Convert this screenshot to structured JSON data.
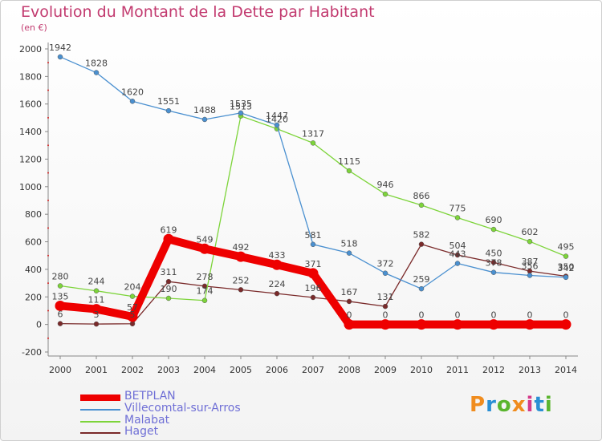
{
  "title": "Evolution du Montant de la Dette par Habitant",
  "subtitle": "(en €)",
  "logo": {
    "text": "Proxiti",
    "colors": [
      "#f08c1e",
      "#2a8fd4",
      "#5ab52e",
      "#f08c1e",
      "#d43a8a",
      "#2a8fd4",
      "#5ab52e"
    ]
  },
  "chart_data": {
    "type": "line",
    "x": [
      2000,
      2001,
      2002,
      2003,
      2004,
      2005,
      2006,
      2007,
      2008,
      2009,
      2010,
      2011,
      2012,
      2013,
      2014
    ],
    "ylim": [
      -200,
      2000
    ],
    "yticks": [
      -200,
      0,
      200,
      400,
      600,
      800,
      1000,
      1200,
      1400,
      1600,
      1800,
      2000
    ],
    "grid": false,
    "legend_position": "bottom-left",
    "series": [
      {
        "name": "BETPLAN",
        "color": "#ee0000",
        "values": [
          135,
          111,
          57,
          619,
          549,
          492,
          433,
          371,
          0,
          0,
          0,
          0,
          0,
          0,
          0
        ]
      },
      {
        "name": "Villecomtal-sur-Arros",
        "color": "#4a90d0",
        "values": [
          1942,
          1828,
          1620,
          1551,
          1488,
          1535,
          1447,
          581,
          518,
          372,
          259,
          443,
          378,
          356,
          342
        ]
      },
      {
        "name": "Malabat",
        "color": "#7dd43a",
        "values": [
          280,
          244,
          204,
          190,
          174,
          1513,
          1420,
          1317,
          1115,
          946,
          866,
          775,
          690,
          602,
          495
        ]
      },
      {
        "name": "Haget",
        "color": "#7a2a2a",
        "values": [
          6,
          3,
          5,
          311,
          278,
          252,
          224,
          196,
          167,
          131,
          582,
          504,
          450,
          387,
          350
        ]
      }
    ]
  }
}
